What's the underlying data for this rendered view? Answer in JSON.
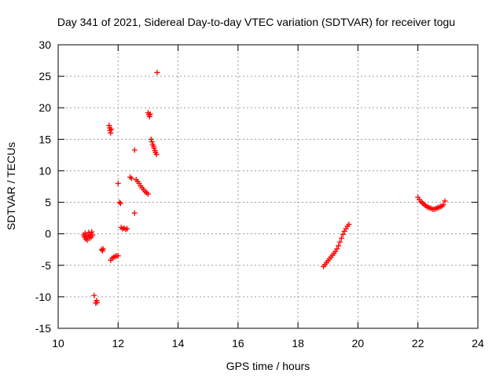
{
  "chart_data": {
    "type": "scatter",
    "title": "Day 341 of 2021, Sidereal Day-to-day VTEC variation (SDTVAR) for receiver togu",
    "xlabel": "GPS time / hours",
    "ylabel": "SDTVAR / TECUs",
    "xlim": [
      10,
      24
    ],
    "ylim": [
      -15,
      30
    ],
    "xticks": [
      10,
      12,
      14,
      16,
      18,
      20,
      22,
      24
    ],
    "yticks": [
      -15,
      -10,
      -5,
      0,
      5,
      10,
      15,
      20,
      25,
      30
    ],
    "grid": true,
    "marker": "+",
    "color": "#ff0000",
    "series": [
      {
        "name": "SDTVAR",
        "points": [
          [
            10.85,
            -0.2
          ],
          [
            10.88,
            -0.5
          ],
          [
            10.9,
            0.1
          ],
          [
            10.92,
            -0.8
          ],
          [
            10.95,
            -0.3
          ],
          [
            10.97,
            -1.0
          ],
          [
            11.0,
            -0.4
          ],
          [
            11.02,
            0.2
          ],
          [
            11.05,
            -0.7
          ],
          [
            11.07,
            -0.1
          ],
          [
            11.1,
            -0.5
          ],
          [
            11.12,
            0.3
          ],
          [
            11.15,
            -0.2
          ],
          [
            11.2,
            -9.8
          ],
          [
            11.25,
            -11.0
          ],
          [
            11.28,
            -10.6
          ],
          [
            11.3,
            -10.9
          ],
          [
            11.45,
            -2.5
          ],
          [
            11.48,
            -2.7
          ],
          [
            11.5,
            -2.4
          ],
          [
            11.7,
            17.2
          ],
          [
            11.72,
            16.8
          ],
          [
            11.73,
            16.4
          ],
          [
            11.75,
            16.0
          ],
          [
            11.77,
            16.6
          ],
          [
            11.75,
            -4.2
          ],
          [
            11.8,
            -3.9
          ],
          [
            11.85,
            -3.7
          ],
          [
            11.9,
            -3.6
          ],
          [
            11.95,
            -3.5
          ],
          [
            12.0,
            -3.5
          ],
          [
            12.0,
            8.0
          ],
          [
            12.05,
            5.0
          ],
          [
            12.08,
            4.8
          ],
          [
            12.1,
            1.0
          ],
          [
            12.15,
            0.8
          ],
          [
            12.2,
            0.9
          ],
          [
            12.25,
            0.7
          ],
          [
            12.3,
            0.8
          ],
          [
            12.4,
            9.0
          ],
          [
            12.45,
            8.8
          ],
          [
            12.55,
            3.3
          ],
          [
            12.55,
            13.3
          ],
          [
            12.6,
            8.6
          ],
          [
            12.65,
            8.3
          ],
          [
            12.7,
            8.0
          ],
          [
            12.75,
            7.6
          ],
          [
            12.8,
            7.3
          ],
          [
            12.85,
            7.0
          ],
          [
            12.9,
            6.7
          ],
          [
            12.95,
            6.5
          ],
          [
            13.0,
            6.3
          ],
          [
            13.0,
            19.2
          ],
          [
            13.03,
            18.9
          ],
          [
            13.05,
            18.6
          ],
          [
            13.07,
            19.0
          ],
          [
            13.1,
            15.0
          ],
          [
            13.13,
            14.6
          ],
          [
            13.15,
            14.2
          ],
          [
            13.18,
            13.9
          ],
          [
            13.2,
            13.6
          ],
          [
            13.23,
            13.2
          ],
          [
            13.25,
            12.9
          ],
          [
            13.28,
            12.6
          ],
          [
            13.3,
            25.6
          ],
          [
            18.85,
            -5.2
          ],
          [
            18.9,
            -4.9
          ],
          [
            18.95,
            -4.6
          ],
          [
            19.0,
            -4.3
          ],
          [
            19.05,
            -4.0
          ],
          [
            19.1,
            -3.7
          ],
          [
            19.15,
            -3.4
          ],
          [
            19.2,
            -3.1
          ],
          [
            19.25,
            -2.8
          ],
          [
            19.3,
            -2.4
          ],
          [
            19.35,
            -1.9
          ],
          [
            19.4,
            -1.3
          ],
          [
            19.45,
            -0.7
          ],
          [
            19.5,
            -0.1
          ],
          [
            19.55,
            0.4
          ],
          [
            19.6,
            0.8
          ],
          [
            19.65,
            1.2
          ],
          [
            19.7,
            1.5
          ],
          [
            22.0,
            5.8
          ],
          [
            22.05,
            5.4
          ],
          [
            22.1,
            5.1
          ],
          [
            22.15,
            4.9
          ],
          [
            22.2,
            4.7
          ],
          [
            22.25,
            4.5
          ],
          [
            22.3,
            4.3
          ],
          [
            22.35,
            4.2
          ],
          [
            22.4,
            4.1
          ],
          [
            22.45,
            4.0
          ],
          [
            22.5,
            3.9
          ],
          [
            22.55,
            3.9
          ],
          [
            22.6,
            4.0
          ],
          [
            22.65,
            4.1
          ],
          [
            22.7,
            4.2
          ],
          [
            22.75,
            4.3
          ],
          [
            22.8,
            4.4
          ],
          [
            22.85,
            4.6
          ],
          [
            22.9,
            5.2
          ]
        ]
      }
    ]
  }
}
